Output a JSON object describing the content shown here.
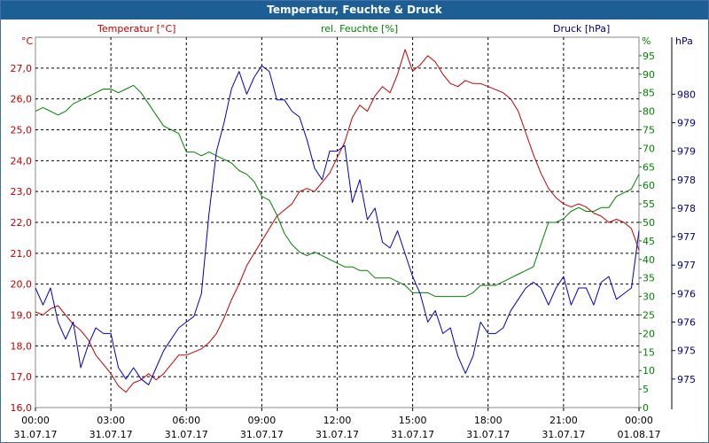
{
  "window": {
    "title": "Temperatur, Feuchte & Druck"
  },
  "chart_data": {
    "type": "line",
    "title": "Temperatur, Feuchte & Druck",
    "colors": {
      "temperature": "#c00000",
      "humidity": "#008000",
      "pressure": "#0000c0",
      "axis_title": "#000080",
      "title_bar": "#1d5f94"
    },
    "axes": {
      "left": {
        "unit": "°C",
        "label": "Temperatur [°C]",
        "range": [
          16.0,
          28.0
        ],
        "ticks": [
          "16,0",
          "17,0",
          "18,0",
          "19,0",
          "20,0",
          "21,0",
          "22,0",
          "23,0",
          "24,0",
          "25,0",
          "26,0",
          "27,0"
        ]
      },
      "middle": {
        "unit": "%",
        "label": "rel. Feuchte [%]",
        "range": [
          0,
          100
        ],
        "ticks": [
          "0",
          "5",
          "10",
          "15",
          "20",
          "25",
          "30",
          "35",
          "40",
          "45",
          "50",
          "55",
          "60",
          "65",
          "70",
          "75",
          "80",
          "85",
          "90",
          "95"
        ]
      },
      "right": {
        "unit": "hPa",
        "label": "Druck [hPa]",
        "range": [
          974.5,
          981.0
        ],
        "ticks": [
          "975",
          "975",
          "976",
          "976",
          "977",
          "977",
          "978",
          "978",
          "979",
          "979",
          "980"
        ]
      },
      "x": {
        "range": [
          0,
          24
        ],
        "ticks": [
          {
            "time": "00:00",
            "date": "31.07.17"
          },
          {
            "time": "03:00",
            "date": "31.07.17"
          },
          {
            "time": "06:00",
            "date": "31.07.17"
          },
          {
            "time": "09:00",
            "date": "31.07.17"
          },
          {
            "time": "12:00",
            "date": "31.07.17"
          },
          {
            "time": "15:00",
            "date": "31.07.17"
          },
          {
            "time": "18:00",
            "date": "31.07.17"
          },
          {
            "time": "21:00",
            "date": "31.07.17"
          },
          {
            "time": "00:00",
            "date": "01.08.17"
          }
        ]
      }
    },
    "grid": true,
    "series": [
      {
        "name": "Temperatur",
        "unit": "°C",
        "color": "#c00000",
        "x": [
          0,
          0.3,
          0.6,
          0.9,
          1.2,
          1.5,
          1.8,
          2.1,
          2.4,
          2.7,
          3.0,
          3.3,
          3.6,
          3.9,
          4.2,
          4.5,
          4.8,
          5.1,
          5.4,
          5.7,
          6.0,
          6.3,
          6.6,
          6.9,
          7.2,
          7.5,
          7.8,
          8.1,
          8.4,
          8.7,
          9.0,
          9.3,
          9.6,
          9.9,
          10.2,
          10.5,
          10.8,
          11.1,
          11.4,
          11.7,
          12.0,
          12.3,
          12.6,
          12.9,
          13.2,
          13.5,
          13.8,
          14.1,
          14.4,
          14.7,
          15.0,
          15.3,
          15.6,
          15.9,
          16.2,
          16.5,
          16.8,
          17.1,
          17.4,
          17.7,
          18.0,
          18.3,
          18.6,
          18.9,
          19.2,
          19.5,
          19.8,
          20.1,
          20.4,
          20.7,
          21.0,
          21.3,
          21.6,
          21.9,
          22.2,
          22.5,
          22.8,
          23.1,
          23.4,
          23.7,
          24.0
        ],
        "values": [
          19.1,
          19.0,
          19.2,
          19.3,
          19.0,
          18.7,
          18.5,
          18.2,
          17.7,
          17.4,
          17.1,
          16.7,
          16.5,
          16.8,
          16.9,
          17.1,
          16.9,
          17.1,
          17.4,
          17.7,
          17.7,
          17.8,
          17.9,
          18.1,
          18.4,
          18.9,
          19.5,
          20.0,
          20.6,
          21.0,
          21.4,
          21.8,
          22.2,
          22.4,
          22.6,
          23.0,
          23.1,
          23.0,
          23.3,
          23.6,
          24.1,
          24.6,
          25.4,
          25.8,
          25.6,
          26.1,
          26.4,
          26.2,
          26.8,
          27.6,
          26.9,
          27.1,
          27.4,
          27.2,
          26.8,
          26.5,
          26.4,
          26.6,
          26.5,
          26.5,
          26.4,
          26.3,
          26.2,
          26.0,
          25.6,
          24.9,
          24.2,
          23.6,
          23.1,
          22.8,
          22.6,
          22.5,
          22.6,
          22.5,
          22.3,
          22.2,
          22.0,
          22.1,
          22.0,
          21.8,
          21.1
        ]
      },
      {
        "name": "rel. Feuchte",
        "unit": "%",
        "color": "#008000",
        "x": [
          0,
          0.3,
          0.6,
          0.9,
          1.2,
          1.5,
          1.8,
          2.1,
          2.4,
          2.7,
          3.0,
          3.3,
          3.6,
          3.9,
          4.2,
          4.5,
          4.8,
          5.1,
          5.4,
          5.7,
          6.0,
          6.3,
          6.6,
          6.9,
          7.2,
          7.5,
          7.8,
          8.1,
          8.4,
          8.7,
          9.0,
          9.3,
          9.6,
          9.9,
          10.2,
          10.5,
          10.8,
          11.1,
          11.4,
          11.7,
          12.0,
          12.3,
          12.6,
          12.9,
          13.2,
          13.5,
          13.8,
          14.1,
          14.4,
          14.7,
          15.0,
          15.3,
          15.6,
          15.9,
          16.2,
          16.5,
          16.8,
          17.1,
          17.4,
          17.7,
          18.0,
          18.3,
          18.6,
          18.9,
          19.2,
          19.5,
          19.8,
          20.1,
          20.4,
          20.7,
          21.0,
          21.3,
          21.6,
          21.9,
          22.2,
          22.5,
          22.8,
          23.1,
          23.4,
          23.7,
          24.0
        ],
        "values": [
          80,
          81,
          80,
          79,
          80,
          82,
          83,
          84,
          85,
          86,
          86,
          85,
          86,
          87,
          85,
          82,
          79,
          76,
          75,
          74,
          69,
          69,
          68,
          69,
          68,
          67,
          66,
          64,
          63,
          61,
          57,
          56,
          52,
          47,
          44,
          42,
          41,
          42,
          41,
          40,
          39,
          38,
          38,
          37,
          37,
          35,
          35,
          35,
          34,
          33,
          31,
          31,
          31,
          30,
          30,
          30,
          30,
          30,
          31,
          33,
          33,
          33,
          34,
          35,
          36,
          37,
          38,
          44,
          50,
          50,
          51,
          53,
          54,
          53,
          53,
          54,
          54,
          57,
          58,
          59,
          63
        ]
      },
      {
        "name": "Druck",
        "unit": "hPa",
        "color": "#0000c0",
        "x": [
          0,
          0.3,
          0.6,
          0.9,
          1.2,
          1.5,
          1.8,
          2.1,
          2.4,
          2.7,
          3.0,
          3.3,
          3.6,
          3.9,
          4.2,
          4.5,
          4.8,
          5.1,
          5.4,
          5.7,
          6.0,
          6.3,
          6.6,
          6.9,
          7.2,
          7.5,
          7.8,
          8.1,
          8.4,
          8.7,
          9.0,
          9.3,
          9.6,
          9.9,
          10.2,
          10.5,
          10.8,
          11.1,
          11.4,
          11.7,
          12.0,
          12.3,
          12.6,
          12.9,
          13.2,
          13.5,
          13.8,
          14.1,
          14.4,
          14.7,
          15.0,
          15.3,
          15.6,
          15.9,
          16.2,
          16.5,
          16.8,
          17.1,
          17.4,
          17.7,
          18.0,
          18.3,
          18.6,
          18.9,
          19.2,
          19.5,
          19.8,
          20.1,
          20.4,
          20.7,
          21.0,
          21.3,
          21.6,
          21.9,
          22.2,
          22.5,
          22.8,
          23.1,
          23.4,
          23.7,
          24.0
        ],
        "values": [
          976.6,
          976.3,
          976.6,
          976.0,
          975.7,
          976.0,
          975.2,
          975.6,
          975.9,
          975.8,
          975.8,
          975.2,
          975.0,
          975.2,
          975.0,
          974.9,
          975.2,
          975.5,
          975.7,
          975.9,
          976.0,
          976.1,
          976.5,
          977.9,
          979.0,
          979.5,
          980.1,
          980.4,
          980.0,
          980.3,
          980.5,
          980.4,
          979.9,
          979.9,
          979.7,
          979.6,
          979.2,
          978.7,
          978.5,
          979.0,
          979.0,
          979.1,
          978.1,
          978.5,
          977.8,
          978.0,
          977.4,
          977.3,
          977.6,
          977.2,
          976.8,
          976.5,
          976.0,
          976.2,
          975.8,
          975.9,
          975.4,
          975.1,
          975.4,
          976.0,
          975.8,
          975.8,
          975.9,
          976.2,
          976.4,
          976.6,
          976.7,
          976.6,
          976.3,
          976.6,
          976.8,
          976.3,
          976.6,
          976.6,
          976.3,
          976.7,
          976.8,
          976.4,
          976.5,
          976.6,
          977.6
        ]
      }
    ]
  }
}
